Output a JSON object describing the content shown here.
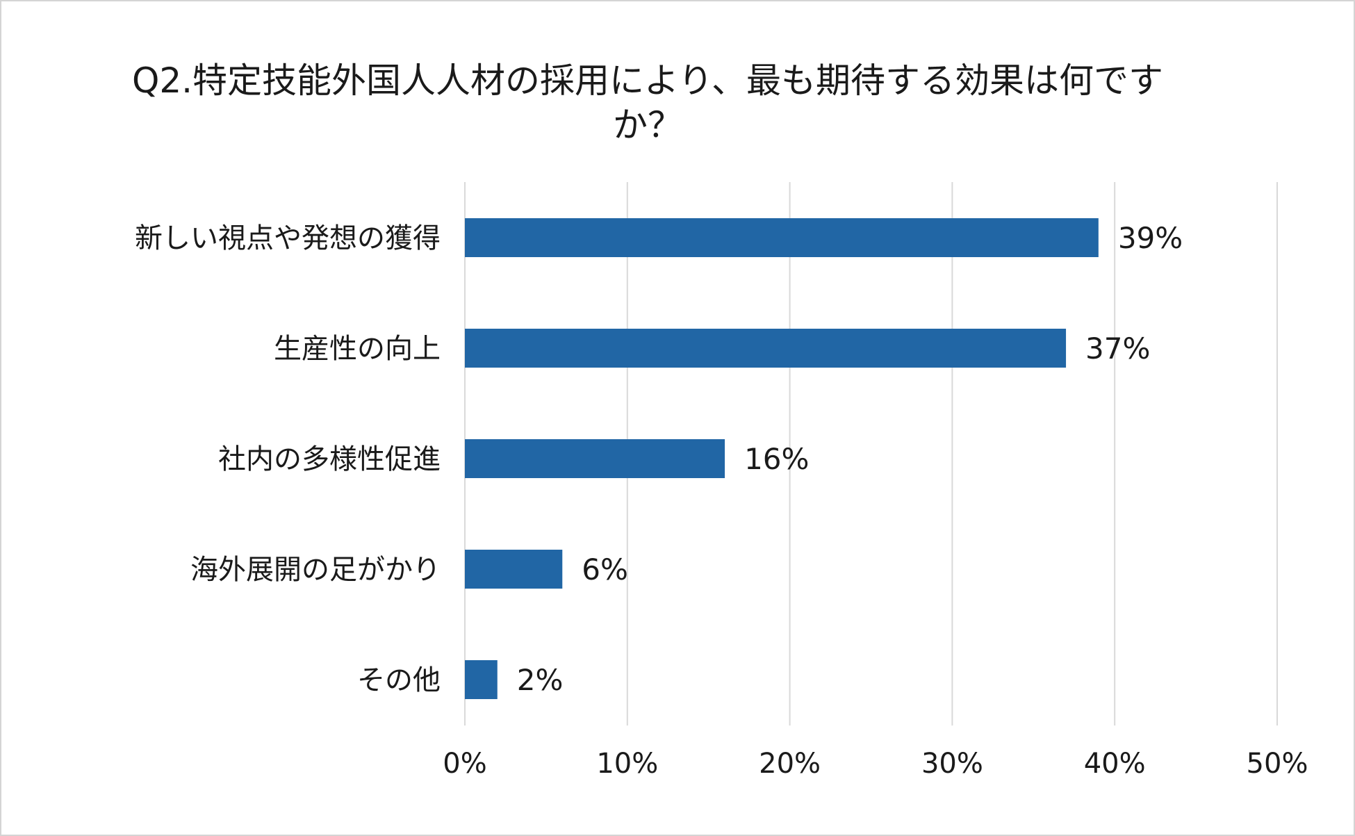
{
  "chart_data": {
    "type": "bar",
    "orientation": "horizontal",
    "title": "Q2.特定技能外国人人材の採用により、最も期待する効果は何です\nか？",
    "categories": [
      "新しい視点や発想の獲得",
      "生産性の向上",
      "社内の多様性促進",
      "海外展開の足がかり",
      "その他"
    ],
    "values": [
      39,
      37,
      16,
      6,
      2
    ],
    "value_labels": [
      "39%",
      "37%",
      "16%",
      "6%",
      "2%"
    ],
    "xlim": [
      0,
      50
    ],
    "x_ticks": [
      0,
      10,
      20,
      30,
      40,
      50
    ],
    "x_tick_labels": [
      "0%",
      "10%",
      "20%",
      "30%",
      "40%",
      "50%"
    ],
    "xlabel": "",
    "ylabel": "",
    "grid": "vertical",
    "legend": "none",
    "colors": {
      "bar": "#2166a5",
      "grid": "#d9d9d9",
      "text": "#1a1a1a",
      "border": "#d4d4d4"
    }
  }
}
